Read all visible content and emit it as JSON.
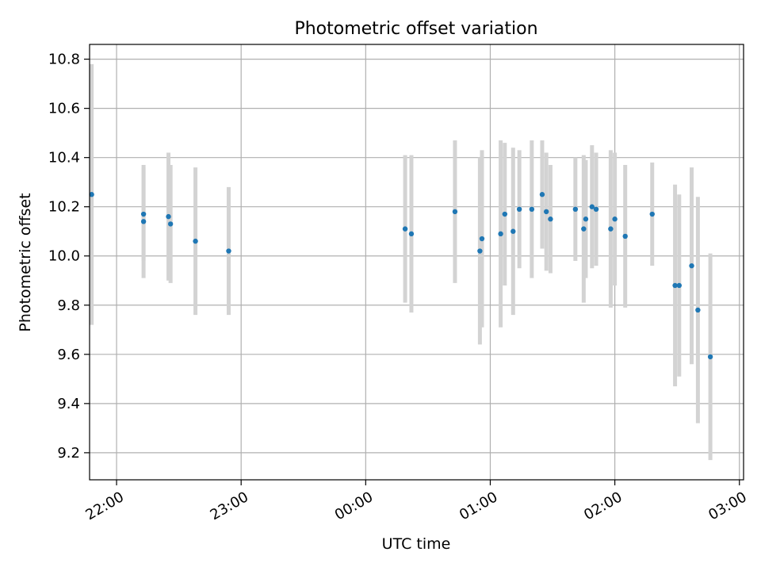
{
  "chart_data": {
    "type": "scatter",
    "title": "Photometric offset variation",
    "xlabel": "UTC time",
    "ylabel": "Photometric offset",
    "grid": true,
    "x_axis_kind": "time",
    "xlim": [
      "21:47",
      "03:02"
    ],
    "ylim": [
      9.09,
      10.86
    ],
    "x_ticks": [
      "22:00",
      "23:00",
      "00:00",
      "01:00",
      "02:00",
      "03:00"
    ],
    "y_ticks": [
      "9.2",
      "9.4",
      "9.6",
      "9.8",
      "10.0",
      "10.2",
      "10.4",
      "10.6",
      "10.8"
    ],
    "colors": {
      "points": "#1f77b4",
      "errorbars": "#d3d3d3",
      "grid": "#b0b0b0"
    },
    "points": [
      {
        "t": "21:48",
        "y": 10.25,
        "err": 0.53
      },
      {
        "t": "22:13",
        "y": 10.17,
        "err": 0.19
      },
      {
        "t": "22:13",
        "y": 10.14,
        "err": 0.23
      },
      {
        "t": "22:25",
        "y": 10.16,
        "err": 0.26
      },
      {
        "t": "22:26",
        "y": 10.13,
        "err": 0.24
      },
      {
        "t": "22:38",
        "y": 10.06,
        "err": 0.3
      },
      {
        "t": "22:54",
        "y": 10.02,
        "err": 0.26
      },
      {
        "t": "00:19",
        "y": 10.11,
        "err": 0.3
      },
      {
        "t": "00:22",
        "y": 10.09,
        "err": 0.32
      },
      {
        "t": "00:43",
        "y": 10.18,
        "err": 0.29
      },
      {
        "t": "00:55",
        "y": 10.02,
        "err": 0.38
      },
      {
        "t": "00:56",
        "y": 10.07,
        "err": 0.36
      },
      {
        "t": "01:05",
        "y": 10.09,
        "err": 0.38
      },
      {
        "t": "01:07",
        "y": 10.17,
        "err": 0.29
      },
      {
        "t": "01:11",
        "y": 10.1,
        "err": 0.34
      },
      {
        "t": "01:14",
        "y": 10.19,
        "err": 0.24
      },
      {
        "t": "01:20",
        "y": 10.19,
        "err": 0.28
      },
      {
        "t": "01:25",
        "y": 10.25,
        "err": 0.22
      },
      {
        "t": "01:27",
        "y": 10.18,
        "err": 0.24
      },
      {
        "t": "01:29",
        "y": 10.15,
        "err": 0.22
      },
      {
        "t": "01:41",
        "y": 10.19,
        "err": 0.21
      },
      {
        "t": "01:45",
        "y": 10.11,
        "err": 0.3
      },
      {
        "t": "01:46",
        "y": 10.15,
        "err": 0.24
      },
      {
        "t": "01:49",
        "y": 10.2,
        "err": 0.25
      },
      {
        "t": "01:51",
        "y": 10.19,
        "err": 0.23
      },
      {
        "t": "01:58",
        "y": 10.11,
        "err": 0.32
      },
      {
        "t": "02:00",
        "y": 10.15,
        "err": 0.27
      },
      {
        "t": "02:05",
        "y": 10.08,
        "err": 0.29
      },
      {
        "t": "02:18",
        "y": 10.17,
        "err": 0.21
      },
      {
        "t": "02:29",
        "y": 9.88,
        "err": 0.41
      },
      {
        "t": "02:31",
        "y": 9.88,
        "err": 0.37
      },
      {
        "t": "02:37",
        "y": 9.96,
        "err": 0.4
      },
      {
        "t": "02:40",
        "y": 9.78,
        "err": 0.46
      },
      {
        "t": "02:46",
        "y": 9.59,
        "err": 0.42
      }
    ]
  }
}
